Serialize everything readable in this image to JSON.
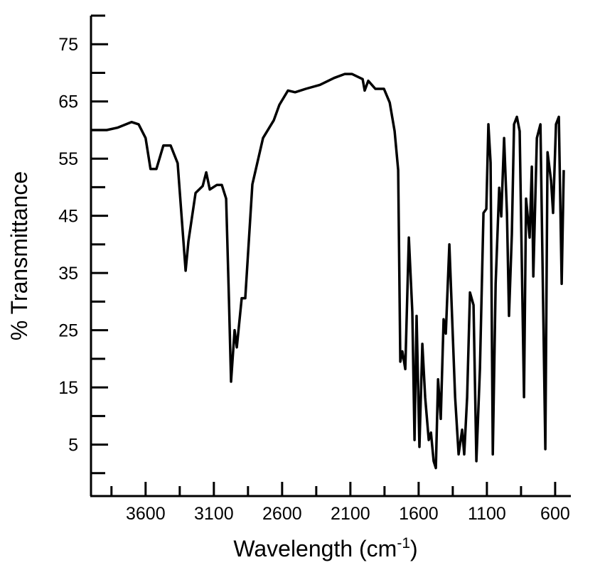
{
  "chart_data": {
    "type": "line",
    "x_label": "Wavelength (cm",
    "x_label_sup": "-1",
    "x_label_end": ")",
    "y_label": "% Transmittance",
    "xlim": [
      4000,
      485
    ],
    "ylim": [
      -4,
      80
    ],
    "xticks": [
      3600,
      3100,
      2600,
      2100,
      1600,
      1100,
      600
    ],
    "xminorticks": [
      3850,
      3350,
      2850,
      2350,
      1850,
      1350,
      850
    ],
    "yticks": [
      5,
      15,
      25,
      35,
      45,
      55,
      65,
      75
    ],
    "yminorticks": [
      0,
      10,
      20,
      30,
      40,
      50,
      60,
      70,
      80
    ],
    "color": "#000000",
    "x": [
      4000,
      3885,
      3807,
      3703,
      3651,
      3600,
      3564,
      3521,
      3470,
      3417,
      3365,
      3323,
      3307,
      3286,
      3234,
      3182,
      3156,
      3130,
      3078,
      3042,
      3010,
      2990,
      2974,
      2948,
      2932,
      2896,
      2870,
      2818,
      2740,
      2661,
      2620,
      2557,
      2505,
      2427,
      2323,
      2219,
      2141,
      2089,
      2010,
      1995,
      1969,
      1917,
      1854,
      1812,
      1776,
      1750,
      1734,
      1719,
      1698,
      1672,
      1646,
      1630,
      1615,
      1594,
      1573,
      1552,
      1526,
      1510,
      1490,
      1474,
      1458,
      1438,
      1417,
      1401,
      1375,
      1333,
      1307,
      1281,
      1266,
      1245,
      1224,
      1198,
      1177,
      1151,
      1125,
      1104,
      1089,
      1073,
      1057,
      1036,
      1010,
      995,
      974,
      953,
      938,
      917,
      901,
      880,
      860,
      828,
      813,
      787,
      771,
      760,
      734,
      708,
      672,
      656,
      630,
      615,
      594,
      573,
      552,
      537
    ],
    "values": [
      60.0,
      60.0,
      60.4,
      61.4,
      61.0,
      58.6,
      53.2,
      53.2,
      57.3,
      57.3,
      54.2,
      40.6,
      35.4,
      40.6,
      49.0,
      50.2,
      52.6,
      49.6,
      50.4,
      50.4,
      48.0,
      30.6,
      16.0,
      25.0,
      22.0,
      30.6,
      30.6,
      50.5,
      58.6,
      61.7,
      64.4,
      66.9,
      66.6,
      67.2,
      67.9,
      69.1,
      69.8,
      69.8,
      68.9,
      66.9,
      68.6,
      67.2,
      67.2,
      64.8,
      59.8,
      53.0,
      19.5,
      21.3,
      18.2,
      41.2,
      28.2,
      5.8,
      27.5,
      4.6,
      22.6,
      13.2,
      5.8,
      7.1,
      2.1,
      0.9,
      16.4,
      9.5,
      26.9,
      24.4,
      40.0,
      13.3,
      3.3,
      7.6,
      3.3,
      13.3,
      31.6,
      29.4,
      2.1,
      18.2,
      45.5,
      46.2,
      61.0,
      54.3,
      3.3,
      33.1,
      49.9,
      44.9,
      58.6,
      45.5,
      27.5,
      41.8,
      61.0,
      62.3,
      59.8,
      13.3,
      48.0,
      41.2,
      53.6,
      34.4,
      58.6,
      61.0,
      4.2,
      56.1,
      51.1,
      45.5,
      61.0,
      62.3,
      33.1,
      53.0
    ]
  }
}
